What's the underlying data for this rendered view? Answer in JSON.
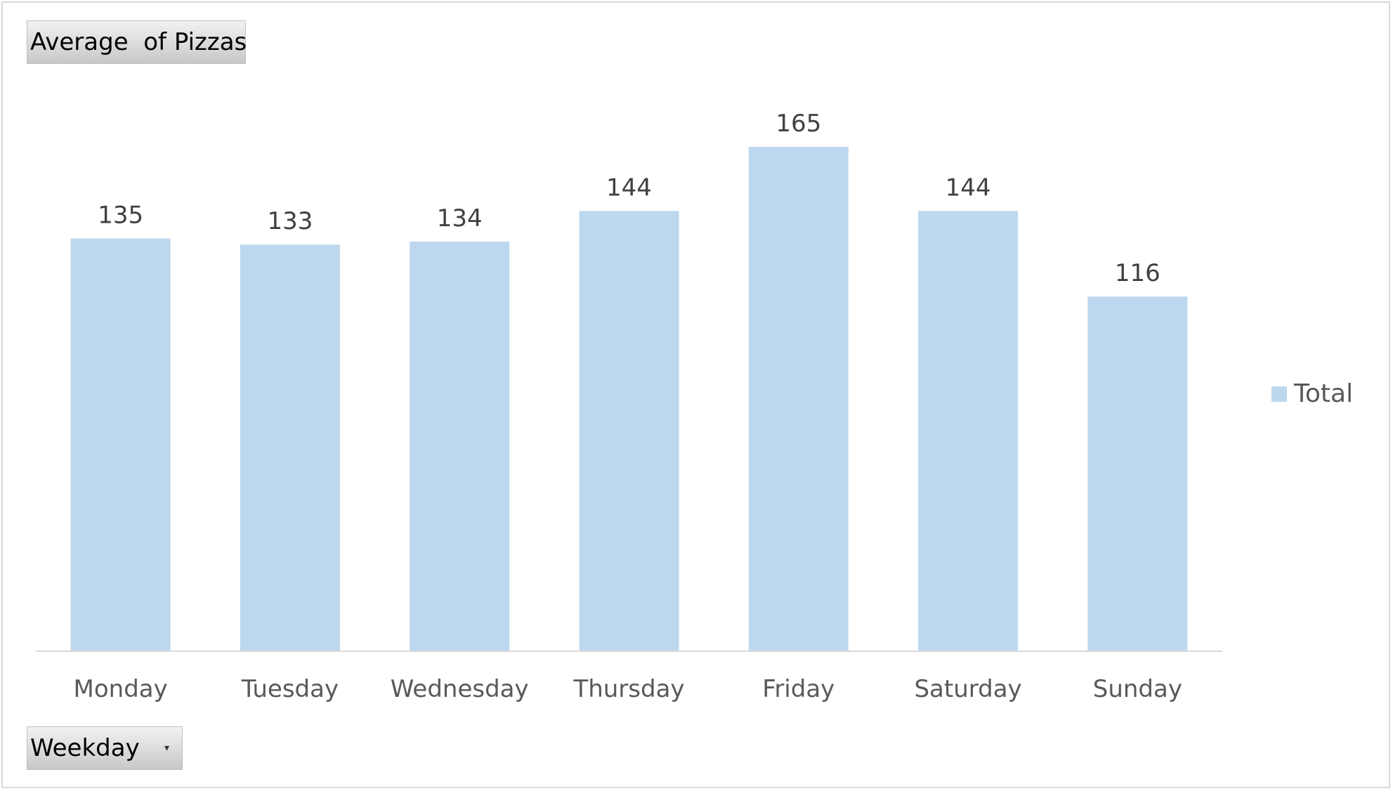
{
  "value_field_button": {
    "label": "Average  of Pizzas"
  },
  "axis_field_button": {
    "label": "Weekday",
    "icon": "dropdown-arrow-icon"
  },
  "legend": {
    "label": "Total",
    "color": "#bdd7ee"
  },
  "chart_data": {
    "type": "bar",
    "title": "",
    "xlabel": "",
    "ylabel": "",
    "categories": [
      "Monday",
      "Tuesday",
      "Wednesday",
      "Thursday",
      "Friday",
      "Saturday",
      "Sunday"
    ],
    "series": [
      {
        "name": "Total",
        "values": [
          135,
          133,
          134,
          144,
          165,
          144,
          116
        ],
        "data_labels": [
          "135",
          "133",
          "134",
          "144",
          "165",
          "144",
          "116"
        ],
        "color": "#bdd7ee"
      }
    ],
    "ylim": [
      0,
      165
    ],
    "grid": false,
    "legend_position": "right"
  }
}
